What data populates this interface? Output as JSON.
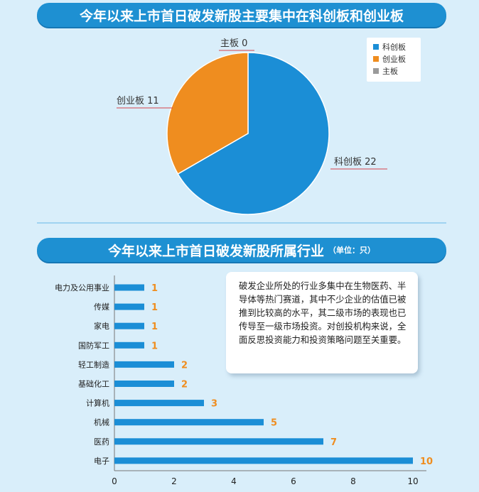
{
  "pie_section": {
    "title": "今年以来上市首日破发新股主要集中在科创板和创业板"
  },
  "bar_section": {
    "title": "今年以来上市首日破发新股所属行业",
    "unit_note": "（单位：只）",
    "note": "破发企业所处的行业多集中在生物医药、半导体等热门赛道，其中不少企业的估值已被推到比较高的水平，其二级市场的表现也已传导至一级市场投资。对创投机构来说，全面反思投资能力和投资策略问题至关重要。"
  },
  "colors": {
    "banner": "#1e90d2",
    "blue": "#1b8ed6",
    "orange": "#ef8d1f",
    "gray": "#9a9a9a",
    "bar": "#1b8ed6",
    "bar_label": "#ef8d1f",
    "leader_line": "#d8434a"
  },
  "chart_data": [
    {
      "type": "pie",
      "title": "今年以来上市首日破发新股主要集中在科创板和创业板",
      "slices": [
        {
          "name": "科创板",
          "value": 22,
          "label": "科创板 22",
          "color": "#1b8ed6"
        },
        {
          "name": "创业板",
          "value": 11,
          "label": "创业板 11",
          "color": "#ef8d1f"
        },
        {
          "name": "主板",
          "value": 0,
          "label": "主板 0",
          "color": "#9a9a9a"
        }
      ],
      "legend": {
        "placement": "top-right",
        "entries": [
          "科创板",
          "创业板",
          "主板"
        ]
      }
    },
    {
      "type": "bar",
      "orientation": "horizontal",
      "title": "今年以来上市首日破发新股所属行业",
      "unit": "（单位：只）",
      "categories": [
        "电力及公用事业",
        "传媒",
        "家电",
        "国防军工",
        "轻工制造",
        "基础化工",
        "计算机",
        "机械",
        "医药",
        "电子"
      ],
      "values": [
        1,
        1,
        1,
        1,
        2,
        2,
        3,
        5,
        7,
        10
      ],
      "xlim": [
        0,
        10
      ],
      "xticks": [
        "0",
        "2",
        "4",
        "6",
        "8",
        "10"
      ],
      "grid": false
    }
  ]
}
